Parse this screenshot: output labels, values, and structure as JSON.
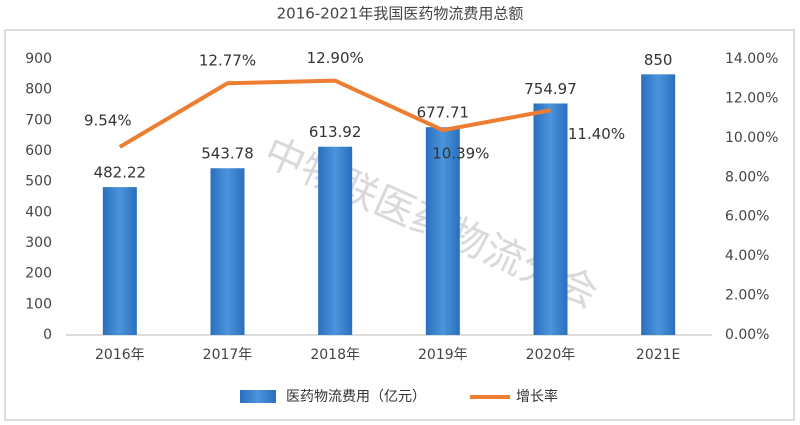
{
  "chart_data": {
    "type": "bar",
    "title": "2016-2021年我国医药物流费用总额",
    "annotations": [
      "中物联医药物流分会"
    ],
    "categories": [
      "2016年",
      "2017年",
      "2018年",
      "2019年",
      "2020年",
      "2021E"
    ],
    "series": [
      {
        "name": "医药物流费用（亿元）",
        "type": "bar",
        "color": "#3f86d3",
        "values": [
          482.22,
          543.78,
          613.92,
          677.71,
          754.97,
          850
        ]
      },
      {
        "name": "增长率",
        "type": "line",
        "axis": "y2",
        "color": "#ed7d31",
        "values": [
          9.54,
          12.77,
          12.9,
          10.39,
          11.4,
          null
        ],
        "value_labels": [
          "9.54%",
          "12.77%",
          "12.90%",
          "10.39%",
          "11.40%",
          null
        ]
      }
    ],
    "ylim": [
      0,
      900
    ],
    "yticks": [
      0,
      100,
      200,
      300,
      400,
      500,
      600,
      700,
      800,
      900
    ],
    "y2lim": [
      0,
      14
    ],
    "y2ticks": [
      {
        "value": 0,
        "label": "0.00%"
      },
      {
        "value": 2,
        "label": "2.00%"
      },
      {
        "value": 4,
        "label": "4.00%"
      },
      {
        "value": 6,
        "label": "6.00%"
      },
      {
        "value": 8,
        "label": "8.00%"
      },
      {
        "value": 10,
        "label": "10.00%"
      },
      {
        "value": 12,
        "label": "12.00%"
      },
      {
        "value": 14,
        "label": "14.00%"
      }
    ],
    "grid": false,
    "legend": "bottom"
  }
}
